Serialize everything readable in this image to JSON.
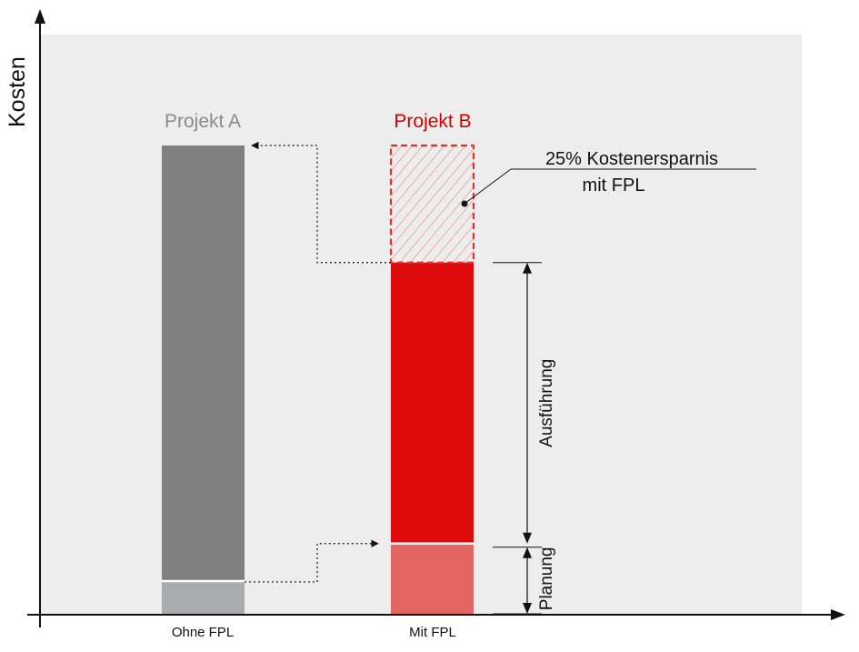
{
  "chart_data": {
    "type": "bar",
    "ylabel": "Kosten",
    "categories": [
      "Ohne FPL",
      "Mit FPL"
    ],
    "series": [
      {
        "name": "Planung",
        "values": [
          7,
          15
        ]
      },
      {
        "name": "Ausführung",
        "values": [
          93,
          60
        ]
      },
      {
        "name": "Kostenersparnis",
        "values": [
          0,
          25
        ]
      }
    ],
    "ylim": [
      0,
      100
    ],
    "grid": false,
    "project_labels": [
      "Projekt A",
      "Projekt B"
    ],
    "annotation": {
      "line1": "25% Kostenersparnis",
      "line2": "mit FPL"
    },
    "range_labels": {
      "execution": "Ausführung",
      "planning": "Planung"
    },
    "colors": {
      "background": "#ededed",
      "planning_a": "#a9abae",
      "execution_a": "#808080",
      "planning_b": "#e56565",
      "execution_b": "#dd0b0b",
      "saving_b": "#e0332e",
      "project_a_label": "#8a8a8a",
      "project_b_label": "#d40000",
      "axis": "#111111"
    }
  }
}
